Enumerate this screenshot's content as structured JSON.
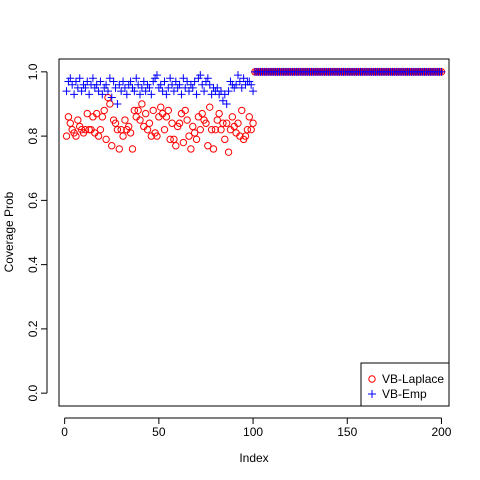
{
  "chart_data": {
    "type": "scatter",
    "xlabel": "Index",
    "ylabel": "Coverage Prob",
    "xlim": [
      -3,
      204
    ],
    "ylim": [
      -0.04,
      1.04
    ],
    "x_ticks": [
      "0",
      "50",
      "100",
      "150",
      "200"
    ],
    "y_ticks": [
      "0.0",
      "0.2",
      "0.4",
      "0.6",
      "0.8",
      "1.0"
    ],
    "legend_position": "bottom-right",
    "series": [
      {
        "name": "VB-Laplace",
        "marker": "circle",
        "color": "#ff0000",
        "x": [
          1,
          2,
          3,
          4,
          5,
          6,
          7,
          8,
          9,
          10,
          11,
          12,
          13,
          14,
          15,
          16,
          17,
          18,
          19,
          20,
          21,
          22,
          23,
          24,
          25,
          26,
          27,
          28,
          29,
          30,
          31,
          32,
          33,
          34,
          35,
          36,
          37,
          38,
          39,
          40,
          41,
          42,
          43,
          44,
          45,
          46,
          47,
          48,
          49,
          50,
          51,
          52,
          53,
          54,
          55,
          56,
          57,
          58,
          59,
          60,
          61,
          62,
          63,
          64,
          65,
          66,
          67,
          68,
          69,
          70,
          71,
          72,
          73,
          74,
          75,
          76,
          77,
          78,
          79,
          80,
          81,
          82,
          83,
          84,
          85,
          86,
          87,
          88,
          89,
          90,
          91,
          92,
          93,
          94,
          95,
          96,
          97,
          98,
          99,
          100,
          101,
          102,
          103,
          104,
          105,
          106,
          107,
          108,
          109,
          110,
          111,
          112,
          113,
          114,
          115,
          116,
          117,
          118,
          119,
          120,
          121,
          122,
          123,
          124,
          125,
          126,
          127,
          128,
          129,
          130,
          131,
          132,
          133,
          134,
          135,
          136,
          137,
          138,
          139,
          140,
          141,
          142,
          143,
          144,
          145,
          146,
          147,
          148,
          149,
          150,
          151,
          152,
          153,
          154,
          155,
          156,
          157,
          158,
          159,
          160,
          161,
          162,
          163,
          164,
          165,
          166,
          167,
          168,
          169,
          170,
          171,
          172,
          173,
          174,
          175,
          176,
          177,
          178,
          179,
          180,
          181,
          182,
          183,
          184,
          185,
          186,
          187,
          188,
          189,
          190,
          191,
          192,
          193,
          194,
          195,
          196,
          197,
          198,
          199,
          200
        ],
        "y": [
          0.8,
          0.86,
          0.84,
          0.82,
          0.81,
          0.8,
          0.85,
          0.83,
          0.82,
          0.81,
          0.82,
          0.87,
          0.82,
          0.82,
          0.86,
          0.81,
          0.87,
          0.8,
          0.82,
          0.86,
          0.88,
          0.79,
          0.92,
          0.9,
          0.77,
          0.85,
          0.84,
          0.82,
          0.76,
          0.82,
          0.8,
          0.85,
          0.82,
          0.83,
          0.81,
          0.76,
          0.88,
          0.86,
          0.88,
          0.85,
          0.9,
          0.83,
          0.87,
          0.82,
          0.84,
          0.8,
          0.88,
          0.81,
          0.8,
          0.86,
          0.89,
          0.87,
          0.82,
          0.86,
          0.88,
          0.79,
          0.84,
          0.79,
          0.77,
          0.83,
          0.84,
          0.87,
          0.78,
          0.88,
          0.85,
          0.8,
          0.76,
          0.83,
          0.81,
          0.79,
          0.86,
          0.82,
          0.87,
          0.85,
          0.84,
          0.77,
          0.89,
          0.82,
          0.76,
          0.82,
          0.85,
          0.87,
          0.82,
          0.84,
          0.79,
          0.84,
          0.75,
          0.82,
          0.86,
          0.83,
          0.81,
          0.84,
          0.8,
          0.88,
          0.79,
          0.8,
          0.82,
          0.86,
          0.82,
          0.84,
          1.0,
          1.0,
          1.0,
          1.0,
          1.0,
          1.0,
          1.0,
          1.0,
          1.0,
          1.0,
          1.0,
          1.0,
          1.0,
          1.0,
          1.0,
          1.0,
          1.0,
          1.0,
          1.0,
          1.0,
          1.0,
          1.0,
          1.0,
          1.0,
          1.0,
          1.0,
          1.0,
          1.0,
          1.0,
          1.0,
          1.0,
          1.0,
          1.0,
          1.0,
          1.0,
          1.0,
          1.0,
          1.0,
          1.0,
          1.0,
          1.0,
          1.0,
          1.0,
          1.0,
          1.0,
          1.0,
          1.0,
          1.0,
          1.0,
          1.0,
          1.0,
          1.0,
          1.0,
          1.0,
          1.0,
          1.0,
          1.0,
          1.0,
          1.0,
          1.0,
          1.0,
          1.0,
          1.0,
          1.0,
          1.0,
          1.0,
          1.0,
          1.0,
          1.0,
          1.0,
          1.0,
          1.0,
          1.0,
          1.0,
          1.0,
          1.0,
          1.0,
          1.0,
          1.0,
          1.0,
          1.0,
          1.0,
          1.0,
          1.0,
          1.0,
          1.0,
          1.0,
          1.0,
          1.0,
          1.0,
          1.0,
          1.0,
          1.0,
          1.0,
          1.0,
          1.0,
          1.0,
          1.0,
          1.0,
          1.0
        ]
      },
      {
        "name": "VB-Emp",
        "marker": "plus",
        "color": "#0000ff",
        "x": [
          1,
          2,
          3,
          4,
          5,
          6,
          7,
          8,
          9,
          10,
          11,
          12,
          13,
          14,
          15,
          16,
          17,
          18,
          19,
          20,
          21,
          22,
          23,
          24,
          25,
          26,
          27,
          28,
          29,
          30,
          31,
          32,
          33,
          34,
          35,
          36,
          37,
          38,
          39,
          40,
          41,
          42,
          43,
          44,
          45,
          46,
          47,
          48,
          49,
          50,
          51,
          52,
          53,
          54,
          55,
          56,
          57,
          58,
          59,
          60,
          61,
          62,
          63,
          64,
          65,
          66,
          67,
          68,
          69,
          70,
          71,
          72,
          73,
          74,
          75,
          76,
          77,
          78,
          79,
          80,
          81,
          82,
          83,
          84,
          85,
          86,
          87,
          88,
          89,
          90,
          91,
          92,
          93,
          94,
          95,
          96,
          97,
          98,
          99,
          100,
          101,
          102,
          103,
          104,
          105,
          106,
          107,
          108,
          109,
          110,
          111,
          112,
          113,
          114,
          115,
          116,
          117,
          118,
          119,
          120,
          121,
          122,
          123,
          124,
          125,
          126,
          127,
          128,
          129,
          130,
          131,
          132,
          133,
          134,
          135,
          136,
          137,
          138,
          139,
          140,
          141,
          142,
          143,
          144,
          145,
          146,
          147,
          148,
          149,
          150,
          151,
          152,
          153,
          154,
          155,
          156,
          157,
          158,
          159,
          160,
          161,
          162,
          163,
          164,
          165,
          166,
          167,
          168,
          169,
          170,
          171,
          172,
          173,
          174,
          175,
          176,
          177,
          178,
          179,
          180,
          181,
          182,
          183,
          184,
          185,
          186,
          187,
          188,
          189,
          190,
          191,
          192,
          193,
          194,
          195,
          196,
          197,
          198,
          199,
          200
        ],
        "y": [
          0.94,
          0.97,
          0.98,
          0.96,
          0.93,
          0.97,
          0.95,
          0.98,
          0.94,
          0.96,
          0.95,
          0.97,
          0.93,
          0.96,
          0.98,
          0.95,
          0.96,
          0.94,
          0.97,
          0.93,
          0.95,
          0.96,
          0.94,
          0.98,
          0.92,
          0.97,
          0.95,
          0.9,
          0.96,
          0.94,
          0.97,
          0.95,
          0.93,
          0.96,
          0.97,
          0.95,
          0.94,
          0.98,
          0.96,
          0.93,
          0.95,
          0.97,
          0.94,
          0.96,
          0.95,
          0.93,
          0.97,
          0.98,
          0.99,
          0.95,
          0.96,
          0.94,
          0.97,
          0.93,
          0.95,
          0.98,
          0.96,
          0.94,
          0.97,
          0.95,
          0.96,
          0.93,
          0.98,
          0.95,
          0.97,
          0.94,
          0.96,
          0.95,
          0.97,
          0.93,
          0.98,
          0.99,
          0.96,
          0.94,
          0.97,
          0.98,
          0.96,
          0.93,
          0.95,
          0.94,
          0.95,
          0.93,
          0.94,
          0.91,
          0.93,
          0.9,
          0.94,
          0.97,
          0.96,
          0.95,
          0.96,
          0.99,
          0.97,
          0.95,
          0.98,
          0.96,
          0.97,
          0.97,
          0.96,
          0.94,
          1.0,
          1.0,
          1.0,
          1.0,
          1.0,
          1.0,
          1.0,
          1.0,
          1.0,
          1.0,
          1.0,
          1.0,
          1.0,
          1.0,
          1.0,
          1.0,
          1.0,
          1.0,
          1.0,
          1.0,
          1.0,
          1.0,
          1.0,
          1.0,
          1.0,
          1.0,
          1.0,
          1.0,
          1.0,
          1.0,
          1.0,
          1.0,
          1.0,
          1.0,
          1.0,
          1.0,
          1.0,
          1.0,
          1.0,
          1.0,
          1.0,
          1.0,
          1.0,
          1.0,
          1.0,
          1.0,
          1.0,
          1.0,
          1.0,
          1.0,
          1.0,
          1.0,
          1.0,
          1.0,
          1.0,
          1.0,
          1.0,
          1.0,
          1.0,
          1.0,
          1.0,
          1.0,
          1.0,
          1.0,
          1.0,
          1.0,
          1.0,
          1.0,
          1.0,
          1.0,
          1.0,
          1.0,
          1.0,
          1.0,
          1.0,
          1.0,
          1.0,
          1.0,
          1.0,
          1.0,
          1.0,
          1.0,
          1.0,
          1.0,
          1.0,
          1.0,
          1.0,
          1.0,
          1.0,
          1.0,
          1.0,
          1.0,
          1.0,
          1.0,
          1.0,
          1.0,
          1.0,
          1.0,
          1.0,
          1.0
        ]
      }
    ]
  }
}
